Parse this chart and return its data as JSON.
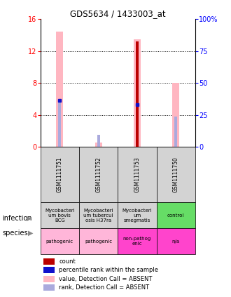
{
  "title": "GDS5634 / 1433003_at",
  "samples": [
    "GSM1111751",
    "GSM1111752",
    "GSM1111753",
    "GSM1111750"
  ],
  "ylim_left": [
    0,
    16
  ],
  "ylim_right": [
    0,
    100
  ],
  "yticks_left": [
    0,
    4,
    8,
    12,
    16
  ],
  "yticks_right": [
    0,
    25,
    50,
    75,
    100
  ],
  "yticklabels_right": [
    "0",
    "25",
    "50",
    "75",
    "100%"
  ],
  "bars": {
    "pink_value": [
      14.5,
      0.5,
      13.5,
      8.0
    ],
    "lightblue_rank": [
      5.8,
      1.5,
      5.3,
      3.8
    ],
    "red_count": [
      0.0,
      0.0,
      13.2,
      0.0
    ],
    "blue_dot": [
      5.8,
      0.0,
      5.3,
      0.0
    ]
  },
  "pink_color": "#FFB6C1",
  "lightblue_color": "#AAAADD",
  "red_color": "#BB0000",
  "blue_color": "#1111CC",
  "grid_lines": [
    4,
    8,
    12
  ],
  "infection_labels": [
    "Mycobacteri\num bovis\nBCG",
    "Mycobacteri\num tubercul\nosis H37ra",
    "Mycobacteri\num\nsmegmatis",
    "control"
  ],
  "infection_colors": [
    "#d3d3d3",
    "#d3d3d3",
    "#d3d3d3",
    "#66DD66"
  ],
  "species_labels": [
    "pathogenic",
    "pathogenic",
    "non-pathog\nenic",
    "n/a"
  ],
  "species_colors": [
    "#FFB6D9",
    "#FFB6D9",
    "#FF44CC",
    "#FF44CC"
  ],
  "legend_items": [
    {
      "label": "count",
      "color": "#BB0000"
    },
    {
      "label": "percentile rank within the sample",
      "color": "#1111CC"
    },
    {
      "label": "value, Detection Call = ABSENT",
      "color": "#FFB6C1"
    },
    {
      "label": "rank, Detection Call = ABSENT",
      "color": "#AAAADD"
    }
  ],
  "row_label_infection": "infection",
  "row_label_species": "species"
}
